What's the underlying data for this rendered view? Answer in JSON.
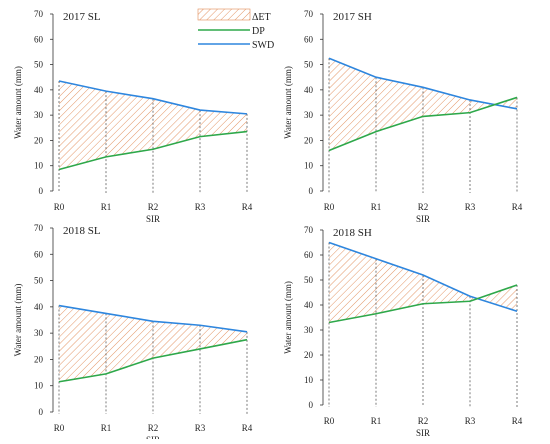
{
  "legend": {
    "et": "ΔET",
    "dp": "DP",
    "swd": "SWD"
  },
  "colors": {
    "swd": "#2e86de",
    "dp": "#2ea84a",
    "hatch": "#e08a55",
    "axis": "#333333"
  },
  "chart_data": [
    {
      "type": "line",
      "title": "2017 SL",
      "xlabel": "SIR",
      "ylabel": "Water amount (mm)",
      "categories": [
        "R0",
        "R1",
        "R2",
        "R3",
        "R4"
      ],
      "ylim": [
        0,
        70
      ],
      "yticks": [
        0,
        10,
        20,
        30,
        40,
        50,
        60,
        70
      ],
      "series": [
        {
          "name": "SWD",
          "values": [
            43.5,
            39.5,
            36.5,
            32,
            30.5
          ]
        },
        {
          "name": "DP",
          "values": [
            8.5,
            13.5,
            16.5,
            21.5,
            23.5
          ]
        }
      ]
    },
    {
      "type": "line",
      "title": "2017 SH",
      "xlabel": "SIR",
      "ylabel": "Water amount (mm)",
      "categories": [
        "R0",
        "R1",
        "R2",
        "R3",
        "R4"
      ],
      "ylim": [
        0,
        70
      ],
      "yticks": [
        0,
        10,
        20,
        30,
        40,
        50,
        60,
        70
      ],
      "series": [
        {
          "name": "SWD",
          "values": [
            52.5,
            45,
            41,
            36,
            32.5
          ]
        },
        {
          "name": "DP",
          "values": [
            16,
            23.5,
            29.5,
            31,
            37
          ]
        }
      ]
    },
    {
      "type": "line",
      "title": "2018 SL",
      "xlabel": "SIR",
      "ylabel": "Water amount (mm)",
      "categories": [
        "R0",
        "R1",
        "R2",
        "R3",
        "R4"
      ],
      "ylim": [
        0,
        70
      ],
      "yticks": [
        0,
        10,
        20,
        30,
        40,
        50,
        60,
        70
      ],
      "series": [
        {
          "name": "SWD",
          "values": [
            40.5,
            37.5,
            34.5,
            33,
            30.5
          ]
        },
        {
          "name": "DP",
          "values": [
            11.5,
            14.5,
            20.5,
            24,
            27.5
          ]
        }
      ]
    },
    {
      "type": "line",
      "title": "2018 SH",
      "xlabel": "SIR",
      "ylabel": "Water amount (mm)",
      "categories": [
        "R0",
        "R1",
        "R2",
        "R3",
        "R4"
      ],
      "ylim": [
        0,
        70
      ],
      "yticks": [
        0,
        10,
        20,
        30,
        40,
        50,
        60,
        70
      ],
      "series": [
        {
          "name": "SWD",
          "values": [
            65,
            58.5,
            52,
            43.5,
            37.5
          ]
        },
        {
          "name": "DP",
          "values": [
            33,
            36.5,
            40.5,
            41.5,
            48
          ]
        }
      ]
    }
  ]
}
